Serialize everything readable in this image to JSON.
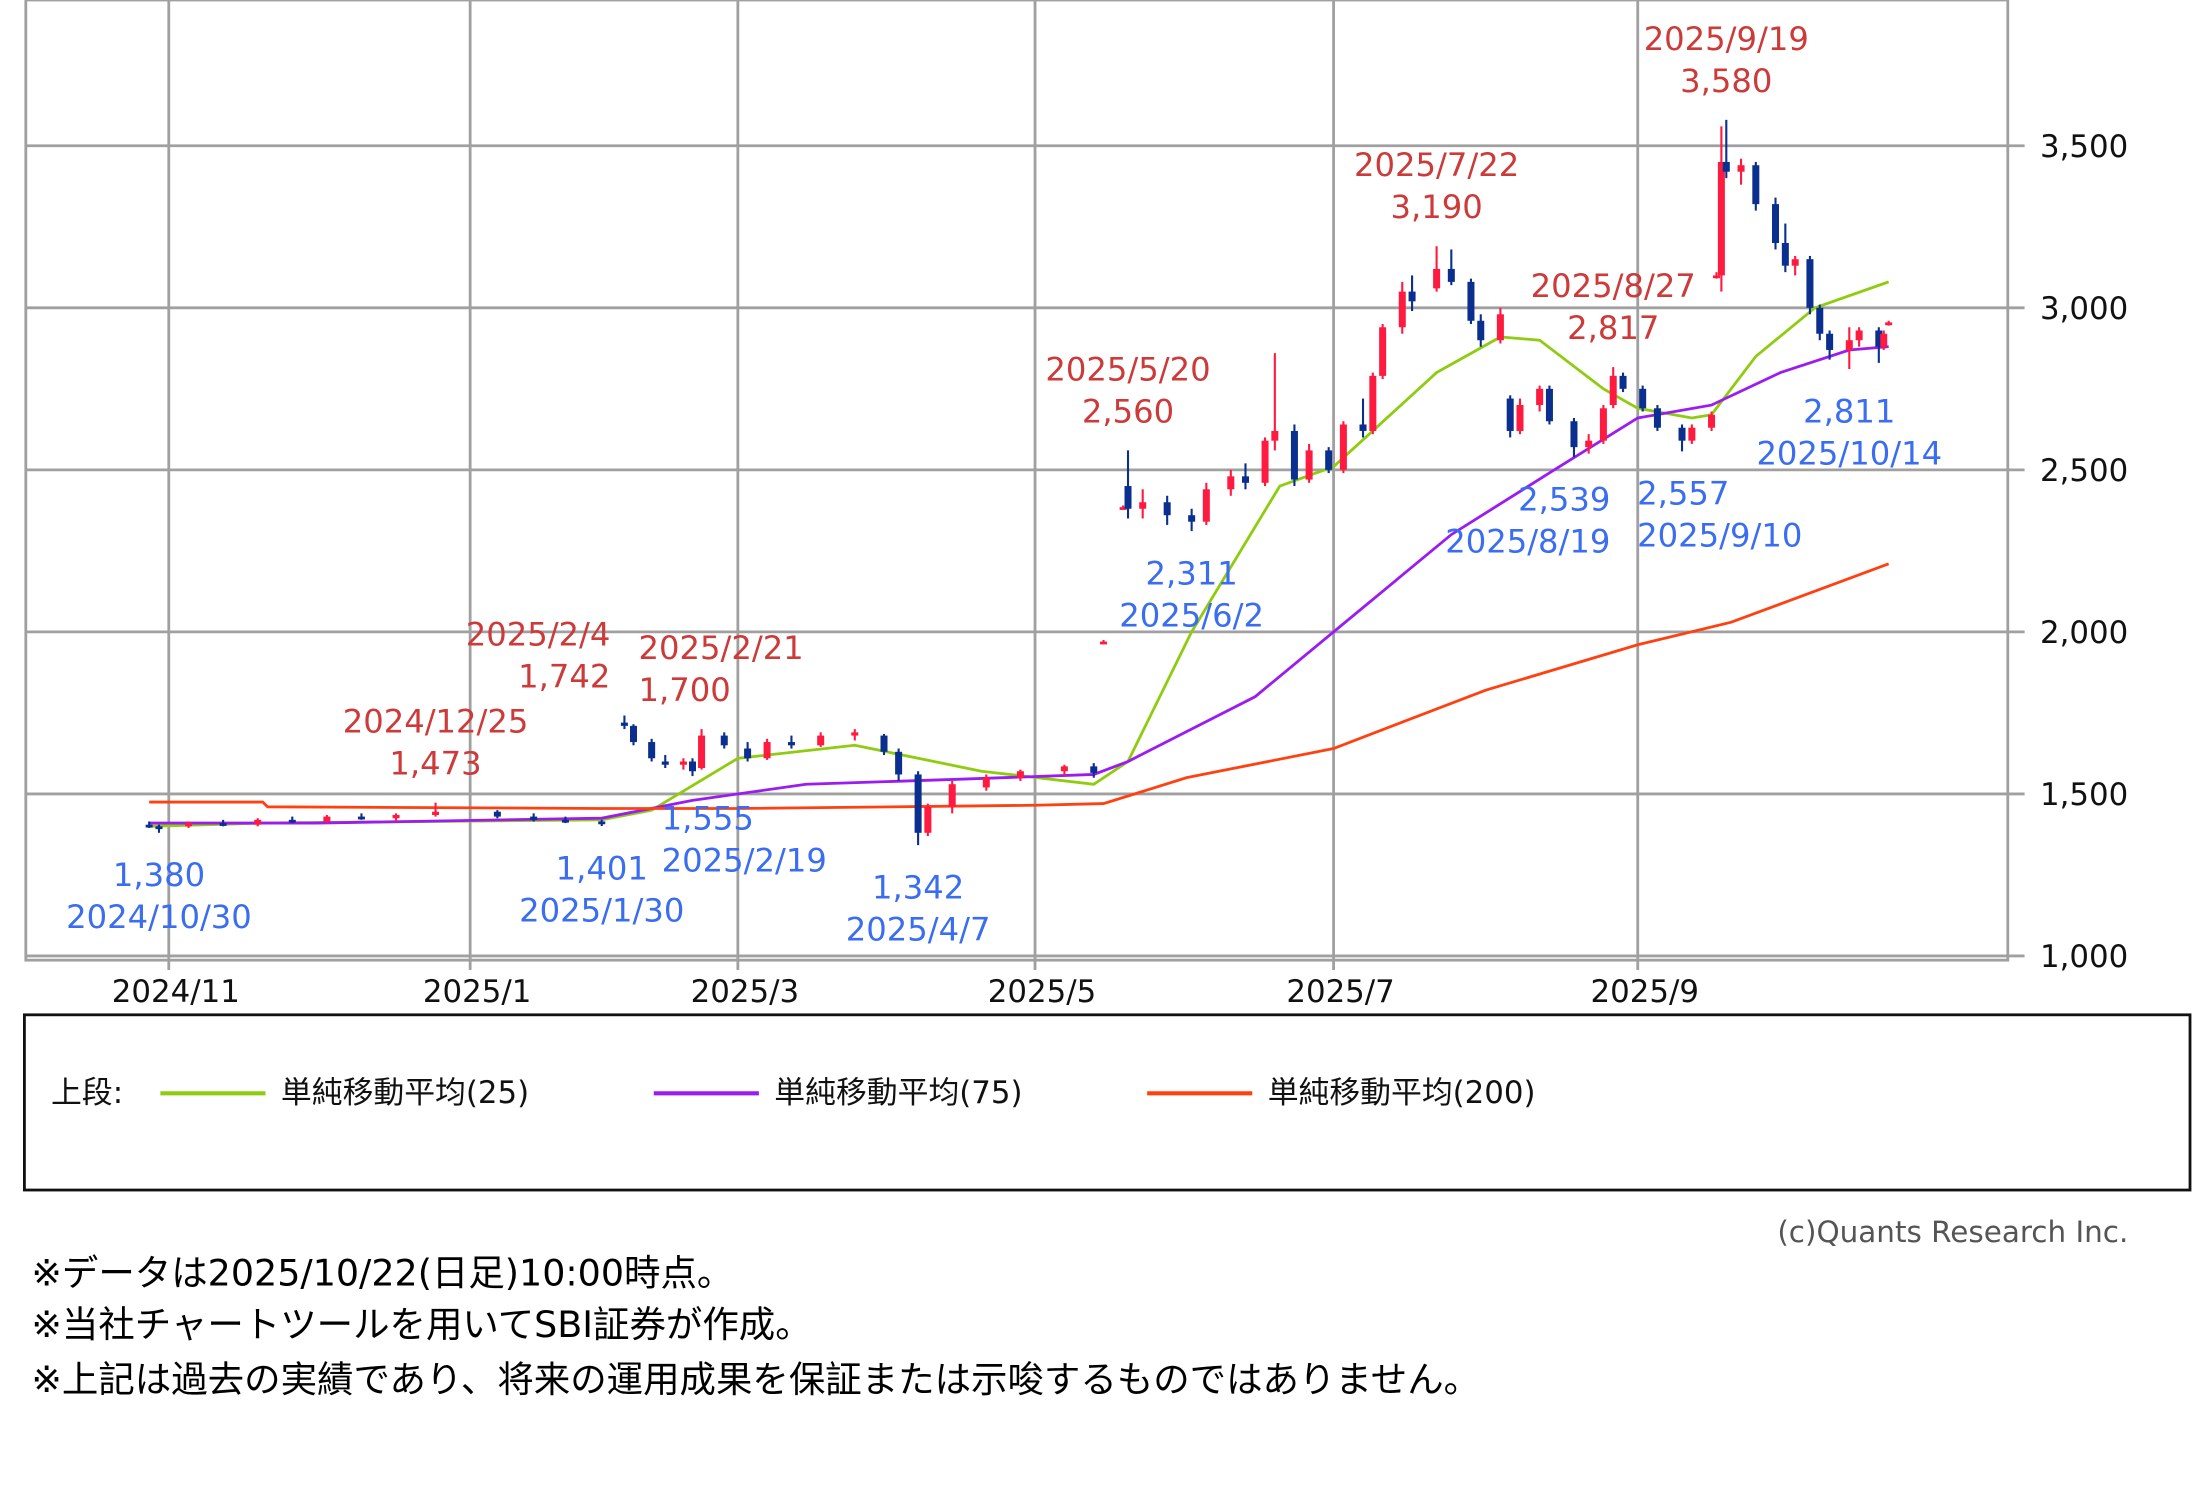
{
  "chart_data": {
    "type": "candlestick",
    "title": "",
    "xlabel": "",
    "ylabel": "",
    "ylim": [
      1000,
      3800
    ],
    "grid": true,
    "y_ticks": [
      "1,000",
      "1,500",
      "2,000",
      "2,500",
      "3,000",
      "3,500"
    ],
    "y_tick_values": [
      1000,
      1500,
      2000,
      2500,
      3000,
      3500
    ],
    "x_ticks": [
      {
        "date": "2024-11-01",
        "label": "2024/11"
      },
      {
        "date": "2025-01-01",
        "label": "2025/1"
      },
      {
        "date": "2025-03-01",
        "label": "2025/3"
      },
      {
        "date": "2025-05-01",
        "label": "2025/5"
      },
      {
        "date": "2025-07-01",
        "label": "2025/7"
      },
      {
        "date": "2025-09-01",
        "label": "2025/9"
      }
    ],
    "colors": {
      "up": "#ff1a40",
      "down": "#0a2f8f",
      "grid": "#a0a0a0",
      "high_label": "#cc3a3a",
      "low_label": "#3a6df0"
    },
    "candles_columns": [
      "date",
      "open",
      "high",
      "low",
      "close"
    ],
    "candles": [
      [
        "2024-10-28",
        1405,
        1415,
        1395,
        1400
      ],
      [
        "2024-10-30",
        1400,
        1405,
        1380,
        1395
      ],
      [
        "2024-11-05",
        1400,
        1415,
        1395,
        1410
      ],
      [
        "2024-11-12",
        1410,
        1420,
        1400,
        1405
      ],
      [
        "2024-11-19",
        1405,
        1425,
        1400,
        1420
      ],
      [
        "2024-11-26",
        1420,
        1430,
        1410,
        1415
      ],
      [
        "2024-12-03",
        1415,
        1435,
        1410,
        1430
      ],
      [
        "2024-12-10",
        1430,
        1440,
        1420,
        1425
      ],
      [
        "2024-12-17",
        1425,
        1440,
        1415,
        1435
      ],
      [
        "2024-12-25",
        1435,
        1473,
        1430,
        1445
      ],
      [
        "2025-01-07",
        1445,
        1450,
        1425,
        1430
      ],
      [
        "2025-01-15",
        1430,
        1440,
        1415,
        1420
      ],
      [
        "2025-01-22",
        1420,
        1430,
        1410,
        1415
      ],
      [
        "2025-01-30",
        1415,
        1420,
        1401,
        1410
      ],
      [
        "2025-02-04",
        1720,
        1742,
        1700,
        1710
      ],
      [
        "2025-02-06",
        1710,
        1715,
        1650,
        1660
      ],
      [
        "2025-02-10",
        1660,
        1670,
        1600,
        1610
      ],
      [
        "2025-02-13",
        1600,
        1620,
        1580,
        1590
      ],
      [
        "2025-02-17",
        1590,
        1610,
        1575,
        1600
      ],
      [
        "2025-02-19",
        1600,
        1610,
        1555,
        1570
      ],
      [
        "2025-02-21",
        1580,
        1700,
        1575,
        1680
      ],
      [
        "2025-02-26",
        1680,
        1690,
        1640,
        1650
      ],
      [
        "2025-03-03",
        1640,
        1660,
        1600,
        1610
      ],
      [
        "2025-03-07",
        1610,
        1670,
        1605,
        1660
      ],
      [
        "2025-03-12",
        1660,
        1680,
        1640,
        1650
      ],
      [
        "2025-03-18",
        1650,
        1690,
        1645,
        1680
      ],
      [
        "2025-03-25",
        1680,
        1700,
        1665,
        1690
      ],
      [
        "2025-03-31",
        1680,
        1685,
        1620,
        1630
      ],
      [
        "2025-04-03",
        1630,
        1640,
        1540,
        1560
      ],
      [
        "2025-04-07",
        1560,
        1570,
        1342,
        1380
      ],
      [
        "2025-04-09",
        1380,
        1470,
        1370,
        1460
      ],
      [
        "2025-04-14",
        1460,
        1540,
        1440,
        1530
      ],
      [
        "2025-04-21",
        1520,
        1560,
        1510,
        1550
      ],
      [
        "2025-04-28",
        1550,
        1575,
        1540,
        1570
      ],
      [
        "2025-05-07",
        1570,
        1590,
        1555,
        1585
      ],
      [
        "2025-05-13",
        1585,
        1595,
        1550,
        1565
      ],
      [
        "2025-05-15",
        1970,
        1975,
        1965,
        1970
      ],
      [
        "2025-05-19",
        2385,
        2390,
        2380,
        2385
      ],
      [
        "2025-05-20",
        2450,
        2560,
        2350,
        2380
      ],
      [
        "2025-05-23",
        2380,
        2440,
        2350,
        2400
      ],
      [
        "2025-05-28",
        2400,
        2420,
        2330,
        2360
      ],
      [
        "2025-06-02",
        2360,
        2380,
        2311,
        2340
      ],
      [
        "2025-06-05",
        2340,
        2460,
        2330,
        2440
      ],
      [
        "2025-06-10",
        2440,
        2500,
        2420,
        2480
      ],
      [
        "2025-06-13",
        2480,
        2520,
        2440,
        2460
      ],
      [
        "2025-06-17",
        2460,
        2600,
        2450,
        2590
      ],
      [
        "2025-06-19",
        2590,
        2860,
        2560,
        2620
      ],
      [
        "2025-06-23",
        2620,
        2640,
        2450,
        2470
      ],
      [
        "2025-06-26",
        2470,
        2580,
        2460,
        2560
      ],
      [
        "2025-06-30",
        2560,
        2570,
        2490,
        2500
      ],
      [
        "2025-07-03",
        2500,
        2650,
        2490,
        2640
      ],
      [
        "2025-07-07",
        2640,
        2720,
        2600,
        2620
      ],
      [
        "2025-07-09",
        2620,
        2800,
        2610,
        2790
      ],
      [
        "2025-07-11",
        2790,
        2950,
        2780,
        2940
      ],
      [
        "2025-07-15",
        2940,
        3080,
        2920,
        3050
      ],
      [
        "2025-07-17",
        3050,
        3100,
        2990,
        3020
      ],
      [
        "2025-07-22",
        3060,
        3190,
        3050,
        3120
      ],
      [
        "2025-07-25",
        3120,
        3180,
        3070,
        3080
      ],
      [
        "2025-07-29",
        3080,
        3090,
        2950,
        2960
      ],
      [
        "2025-07-31",
        2960,
        2980,
        2880,
        2900
      ],
      [
        "2025-08-04",
        2900,
        3000,
        2890,
        2980
      ],
      [
        "2025-08-06",
        2720,
        2730,
        2600,
        2620
      ],
      [
        "2025-08-08",
        2620,
        2720,
        2610,
        2700
      ],
      [
        "2025-08-12",
        2700,
        2760,
        2680,
        2750
      ],
      [
        "2025-08-14",
        2750,
        2760,
        2640,
        2650
      ],
      [
        "2025-08-19",
        2650,
        2660,
        2539,
        2570
      ],
      [
        "2025-08-22",
        2570,
        2610,
        2550,
        2590
      ],
      [
        "2025-08-25",
        2590,
        2700,
        2580,
        2690
      ],
      [
        "2025-08-27",
        2700,
        2817,
        2690,
        2790
      ],
      [
        "2025-08-29",
        2790,
        2800,
        2740,
        2750
      ],
      [
        "2025-09-02",
        2750,
        2760,
        2680,
        2690
      ],
      [
        "2025-09-05",
        2690,
        2700,
        2620,
        2630
      ],
      [
        "2025-09-10",
        2630,
        2640,
        2557,
        2590
      ],
      [
        "2025-09-12",
        2590,
        2640,
        2580,
        2630
      ],
      [
        "2025-09-16",
        2630,
        2680,
        2620,
        2670
      ],
      [
        "2025-09-17",
        3100,
        3110,
        3090,
        3100
      ],
      [
        "2025-09-18",
        3100,
        3560,
        3050,
        3450
      ],
      [
        "2025-09-19",
        3450,
        3580,
        3400,
        3420
      ],
      [
        "2025-09-22",
        3420,
        3460,
        3380,
        3440
      ],
      [
        "2025-09-25",
        3440,
        3450,
        3300,
        3320
      ],
      [
        "2025-09-29",
        3320,
        3340,
        3180,
        3200
      ],
      [
        "2025-10-01",
        3200,
        3260,
        3110,
        3130
      ],
      [
        "2025-10-03",
        3130,
        3160,
        3100,
        3150
      ],
      [
        "2025-10-06",
        3150,
        3160,
        2980,
        3000
      ],
      [
        "2025-10-08",
        3000,
        3010,
        2900,
        2920
      ],
      [
        "2025-10-10",
        2920,
        2930,
        2840,
        2870
      ],
      [
        "2025-10-14",
        2870,
        2940,
        2811,
        2900
      ],
      [
        "2025-10-16",
        2900,
        2940,
        2880,
        2930
      ],
      [
        "2025-10-20",
        2930,
        2940,
        2830,
        2880
      ],
      [
        "2025-10-21",
        2880,
        2930,
        2870,
        2920
      ],
      [
        "2025-10-22",
        2950,
        2960,
        2945,
        2955
      ]
    ],
    "series": [
      {
        "name": "単純移動平均(25)",
        "color": "#8fcc10",
        "points": [
          [
            "2024-10-28",
            1400
          ],
          [
            "2024-11-20",
            1410
          ],
          [
            "2025-01-30",
            1420
          ],
          [
            "2025-02-10",
            1450
          ],
          [
            "2025-03-01",
            1610
          ],
          [
            "2025-03-25",
            1650
          ],
          [
            "2025-04-20",
            1570
          ],
          [
            "2025-05-13",
            1530
          ],
          [
            "2025-05-20",
            1600
          ],
          [
            "2025-06-02",
            2000
          ],
          [
            "2025-06-20",
            2450
          ],
          [
            "2025-07-01",
            2510
          ],
          [
            "2025-07-22",
            2800
          ],
          [
            "2025-08-04",
            2910
          ],
          [
            "2025-08-12",
            2900
          ],
          [
            "2025-08-25",
            2750
          ],
          [
            "2025-09-01",
            2690
          ],
          [
            "2025-09-12",
            2660
          ],
          [
            "2025-09-16",
            2670
          ],
          [
            "2025-09-25",
            2850
          ],
          [
            "2025-10-07",
            3000
          ],
          [
            "2025-10-22",
            3080
          ]
        ]
      },
      {
        "name": "単純移動平均(75)",
        "color": "#9b1cf0",
        "points": [
          [
            "2024-10-28",
            1410
          ],
          [
            "2024-12-01",
            1410
          ],
          [
            "2025-01-30",
            1425
          ],
          [
            "2025-02-19",
            1480
          ],
          [
            "2025-03-15",
            1530
          ],
          [
            "2025-04-15",
            1545
          ],
          [
            "2025-05-13",
            1560
          ],
          [
            "2025-05-20",
            1600
          ],
          [
            "2025-06-15",
            1800
          ],
          [
            "2025-07-01",
            2000
          ],
          [
            "2025-07-25",
            2300
          ],
          [
            "2025-08-15",
            2500
          ],
          [
            "2025-09-01",
            2660
          ],
          [
            "2025-09-16",
            2700
          ],
          [
            "2025-09-30",
            2800
          ],
          [
            "2025-10-14",
            2870
          ],
          [
            "2025-10-22",
            2880
          ]
        ]
      },
      {
        "name": "単純移動平均(200)",
        "color": "#ff4010",
        "points": [
          [
            "2024-10-28",
            1475
          ],
          [
            "2024-11-20",
            1475
          ],
          [
            "2024-11-21",
            1460
          ],
          [
            "2025-01-30",
            1455
          ],
          [
            "2025-03-01",
            1455
          ],
          [
            "2025-05-01",
            1465
          ],
          [
            "2025-05-15",
            1470
          ],
          [
            "2025-06-01",
            1550
          ],
          [
            "2025-07-01",
            1640
          ],
          [
            "2025-08-01",
            1820
          ],
          [
            "2025-09-01",
            1960
          ],
          [
            "2025-09-20",
            2030
          ],
          [
            "2025-10-22",
            2210
          ]
        ]
      }
    ],
    "annotations": [
      {
        "kind": "high",
        "date": "2024-12-25",
        "value": 1473,
        "date_label": "2024/12/25",
        "value_label": "1,473"
      },
      {
        "kind": "high",
        "date": "2025-02-04",
        "value": 1742,
        "date_label": "2025/2/4",
        "value_label": "1,742"
      },
      {
        "kind": "high",
        "date": "2025-02-21",
        "value": 1700,
        "date_label": "2025/2/21",
        "value_label": "1,700"
      },
      {
        "kind": "high",
        "date": "2025-05-20",
        "value": 2560,
        "date_label": "2025/5/20",
        "value_label": "2,560"
      },
      {
        "kind": "high",
        "date": "2025-07-22",
        "value": 3190,
        "date_label": "2025/7/22",
        "value_label": "3,190"
      },
      {
        "kind": "high",
        "date": "2025-08-27",
        "value": 2817,
        "date_label": "2025/8/27",
        "value_label": "2,817"
      },
      {
        "kind": "high",
        "date": "2025-09-19",
        "value": 3580,
        "date_label": "2025/9/19",
        "value_label": "3,580"
      },
      {
        "kind": "low",
        "date": "2024-10-30",
        "value": 1380,
        "date_label": "2024/10/30",
        "value_label": "1,380"
      },
      {
        "kind": "low",
        "date": "2025-01-30",
        "value": 1401,
        "date_label": "2025/1/30",
        "value_label": "1,401"
      },
      {
        "kind": "low",
        "date": "2025-02-19",
        "value": 1555,
        "date_label": "2025/2/19",
        "value_label": "1,555"
      },
      {
        "kind": "low",
        "date": "2025-04-07",
        "value": 1342,
        "date_label": "2025/4/7",
        "value_label": "1,342"
      },
      {
        "kind": "low",
        "date": "2025-06-02",
        "value": 2311,
        "date_label": "2025/6/2",
        "value_label": "2,311"
      },
      {
        "kind": "low",
        "date": "2025-08-19",
        "value": 2539,
        "date_label": "2025/8/19",
        "value_label": "2,539"
      },
      {
        "kind": "low",
        "date": "2025-09-10",
        "value": 2557,
        "date_label": "2025/9/10",
        "value_label": "2,557"
      },
      {
        "kind": "low",
        "date": "2025-10-14",
        "value": 2811,
        "date_label": "2025/10/14",
        "value_label": "2,811"
      }
    ]
  },
  "legend": {
    "prefix": "上段:",
    "items": [
      {
        "label": "単純移動平均(25)",
        "color": "#8fcc10"
      },
      {
        "label": "単純移動平均(75)",
        "color": "#9b1cf0"
      },
      {
        "label": "単純移動平均(200)",
        "color": "#ff4010"
      }
    ]
  },
  "copyright": "(c)Quants Research Inc.",
  "notes": [
    "※データは2025/10/22(日足)10:00時点。",
    "※当社チャートツールを用いてSBI証券が作成。",
    "※上記は過去の実績であり、将来の運用成果を保証または示唆するものではありません。"
  ]
}
